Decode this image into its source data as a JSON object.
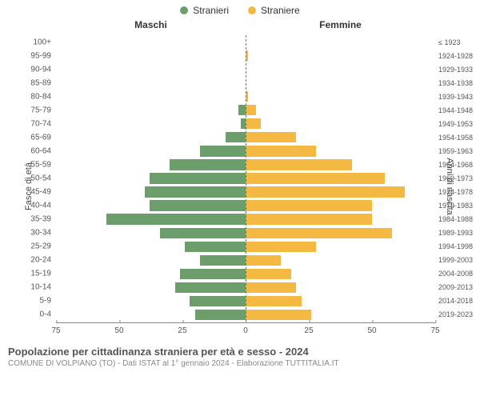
{
  "legend": {
    "male": {
      "label": "Stranieri",
      "color": "#6c9e6c"
    },
    "female": {
      "label": "Straniere",
      "color": "#f4b942"
    }
  },
  "columns": {
    "male_title": "Maschi",
    "female_title": "Femmine"
  },
  "y_axis_left": "Fasce di età",
  "y_axis_right": "Anni di nascita",
  "x_axis": {
    "max": 75,
    "ticks": [
      75,
      50,
      25,
      0,
      25,
      50,
      75
    ]
  },
  "rows": [
    {
      "age": "100+",
      "year": "≤ 1923",
      "m": 0,
      "f": 0
    },
    {
      "age": "95-99",
      "year": "1924-1928",
      "m": 0,
      "f": 1
    },
    {
      "age": "90-94",
      "year": "1929-1933",
      "m": 0,
      "f": 0
    },
    {
      "age": "85-89",
      "year": "1934-1938",
      "m": 0,
      "f": 0
    },
    {
      "age": "80-84",
      "year": "1939-1943",
      "m": 0,
      "f": 1
    },
    {
      "age": "75-79",
      "year": "1944-1948",
      "m": 3,
      "f": 4
    },
    {
      "age": "70-74",
      "year": "1949-1953",
      "m": 2,
      "f": 6
    },
    {
      "age": "65-69",
      "year": "1954-1958",
      "m": 8,
      "f": 20
    },
    {
      "age": "60-64",
      "year": "1959-1963",
      "m": 18,
      "f": 28
    },
    {
      "age": "55-59",
      "year": "1964-1968",
      "m": 30,
      "f": 42
    },
    {
      "age": "50-54",
      "year": "1969-1973",
      "m": 38,
      "f": 55
    },
    {
      "age": "45-49",
      "year": "1974-1978",
      "m": 40,
      "f": 63
    },
    {
      "age": "40-44",
      "year": "1979-1983",
      "m": 38,
      "f": 50
    },
    {
      "age": "35-39",
      "year": "1984-1988",
      "m": 55,
      "f": 50
    },
    {
      "age": "30-34",
      "year": "1989-1993",
      "m": 34,
      "f": 58
    },
    {
      "age": "25-29",
      "year": "1994-1998",
      "m": 24,
      "f": 28
    },
    {
      "age": "20-24",
      "year": "1999-2003",
      "m": 18,
      "f": 14
    },
    {
      "age": "15-19",
      "year": "2004-2008",
      "m": 26,
      "f": 18
    },
    {
      "age": "10-14",
      "year": "2009-2013",
      "m": 28,
      "f": 20
    },
    {
      "age": "5-9",
      "year": "2014-2018",
      "m": 22,
      "f": 22
    },
    {
      "age": "0-4",
      "year": "2019-2023",
      "m": 20,
      "f": 26
    }
  ],
  "footer": {
    "title": "Popolazione per cittadinanza straniera per età e sesso - 2024",
    "subtitle": "COMUNE DI VOLPIANO (TO) - Dati ISTAT al 1° gennaio 2024 - Elaborazione TUTTITALIA.IT"
  },
  "grid_color": "#e8e8e8"
}
